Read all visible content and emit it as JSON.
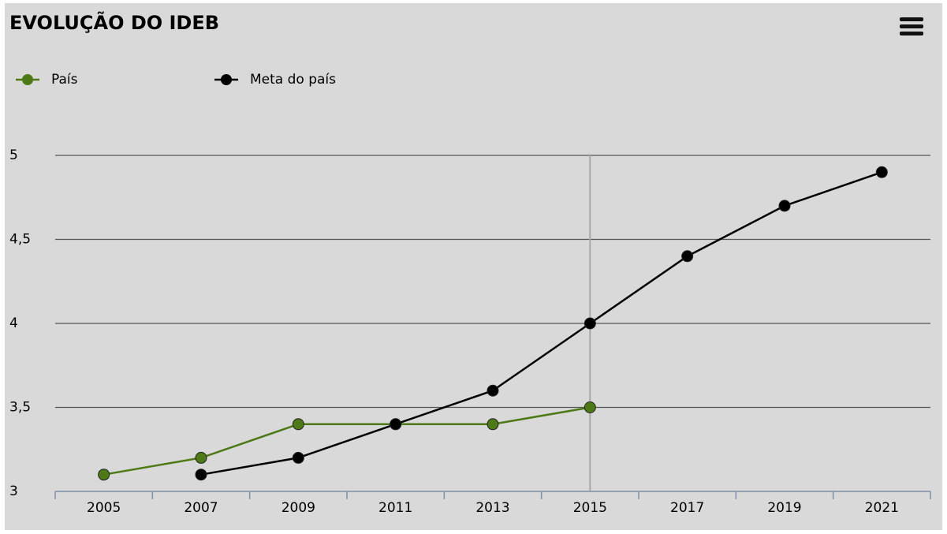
{
  "chart_data": {
    "type": "line",
    "title": "EVOLUÇÃO DO IDEB",
    "categories": [
      "2005",
      "2007",
      "2009",
      "2011",
      "2013",
      "2015",
      "2017",
      "2019",
      "2021"
    ],
    "series": [
      {
        "name": "País",
        "color": "#4d7a16",
        "values": [
          3.1,
          3.2,
          3.4,
          3.4,
          3.4,
          3.5,
          null,
          null,
          null
        ]
      },
      {
        "name": "Meta do país",
        "color": "#000000",
        "values": [
          null,
          3.1,
          3.2,
          3.4,
          3.6,
          4.0,
          4.4,
          4.7,
          4.9
        ]
      }
    ],
    "ylim": [
      3,
      5
    ],
    "yticks": [
      3,
      {
        "value": 3.5,
        "label": "3,5"
      },
      4,
      {
        "value": 4.5,
        "label": "4,5"
      },
      5
    ],
    "grid": true,
    "legend": "top-left"
  }
}
